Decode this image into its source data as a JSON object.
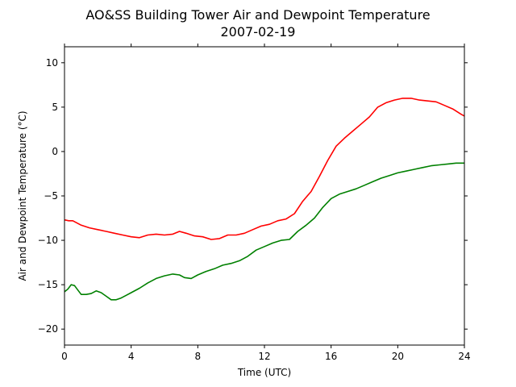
{
  "chart_data": {
    "type": "line",
    "title": "AO&SS Building Tower Air and Dewpoint Temperature",
    "subtitle": "2007-02-19",
    "xlabel": "Time (UTC)",
    "ylabel": "Air and Dewpoint Temperature (°C)",
    "xlim": [
      0,
      24
    ],
    "ylim": [
      -21.8,
      11.8
    ],
    "xticks": [
      0,
      4,
      8,
      12,
      16,
      20,
      24
    ],
    "yticks": [
      -20,
      -15,
      -10,
      -5,
      0,
      5,
      10
    ],
    "grid": false,
    "series": [
      {
        "color": "#ff0000",
        "x": [
          0,
          0.25,
          0.5,
          1,
          1.5,
          2,
          2.5,
          3,
          3.5,
          4,
          4.5,
          5,
          5.5,
          6,
          6.5,
          6.9,
          7.3,
          7.8,
          8.3,
          8.8,
          9.3,
          9.8,
          10.3,
          10.8,
          11.3,
          11.8,
          12.3,
          12.8,
          13.3,
          13.8,
          14.3,
          14.8,
          15.3,
          15.8,
          16.3,
          16.8,
          17.3,
          17.8,
          18.3,
          18.8,
          19.3,
          19.8,
          20.3,
          20.8,
          21.3,
          21.8,
          22.3,
          22.8,
          23.3,
          23.8,
          24
        ],
        "y": [
          -7.7,
          -7.8,
          -7.8,
          -8.3,
          -8.6,
          -8.8,
          -9.0,
          -9.2,
          -9.4,
          -9.6,
          -9.7,
          -9.4,
          -9.3,
          -9.4,
          -9.3,
          -9.0,
          -9.2,
          -9.5,
          -9.6,
          -9.9,
          -9.8,
          -9.4,
          -9.4,
          -9.2,
          -8.8,
          -8.4,
          -8.2,
          -7.8,
          -7.6,
          -7.0,
          -5.6,
          -4.5,
          -2.8,
          -1.0,
          0.6,
          1.5,
          2.3,
          3.1,
          3.9,
          5.0,
          5.5,
          5.8,
          6.0,
          6.0,
          5.8,
          5.7,
          5.6,
          5.2,
          4.8,
          4.2,
          4.0
        ]
      },
      {
        "color": "#008000",
        "x": [
          0,
          0.2,
          0.4,
          0.6,
          0.8,
          1,
          1.3,
          1.6,
          1.9,
          2.2,
          2.5,
          2.8,
          3.1,
          3.4,
          3.7,
          4,
          4.5,
          5,
          5.5,
          6,
          6.5,
          6.9,
          7.2,
          7.6,
          8,
          8.5,
          9,
          9.5,
          10,
          10.5,
          11,
          11.5,
          12,
          12.5,
          13,
          13.5,
          14,
          14.5,
          15,
          15.5,
          16,
          16.5,
          17,
          17.5,
          18,
          18.5,
          19,
          19.5,
          20,
          20.5,
          21,
          21.5,
          22,
          22.5,
          23,
          23.5,
          24
        ],
        "y": [
          -15.8,
          -15.5,
          -15.0,
          -15.1,
          -15.6,
          -16.1,
          -16.1,
          -16.0,
          -15.7,
          -15.9,
          -16.3,
          -16.7,
          -16.7,
          -16.5,
          -16.2,
          -15.9,
          -15.4,
          -14.8,
          -14.3,
          -14.0,
          -13.8,
          -13.9,
          -14.2,
          -14.3,
          -13.9,
          -13.5,
          -13.2,
          -12.8,
          -12.6,
          -12.3,
          -11.8,
          -11.1,
          -10.7,
          -10.3,
          -10.0,
          -9.9,
          -9.0,
          -8.3,
          -7.5,
          -6.3,
          -5.3,
          -4.8,
          -4.5,
          -4.2,
          -3.8,
          -3.4,
          -3.0,
          -2.7,
          -2.4,
          -2.2,
          -2.0,
          -1.8,
          -1.6,
          -1.5,
          -1.4,
          -1.3,
          -1.3
        ]
      }
    ]
  }
}
